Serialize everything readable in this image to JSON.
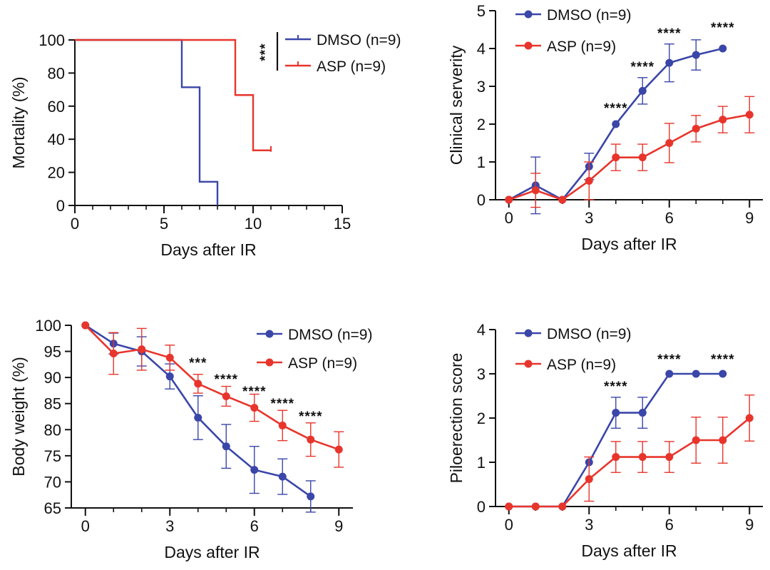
{
  "colors": {
    "dmso": "#3a46a8",
    "asp": "#e8352c"
  },
  "chart_data": [
    {
      "id": "mortality",
      "type": "line",
      "step": true,
      "xlabel": "Days after IR",
      "ylabel": "Mortality  (%)",
      "xlim": [
        0,
        15
      ],
      "ylim": [
        0,
        100
      ],
      "xticks": [
        0,
        5,
        10,
        15
      ],
      "xtick_labels": [
        "0",
        "5",
        "10",
        "15"
      ],
      "yticks": [
        0,
        20,
        40,
        60,
        80,
        100
      ],
      "ytick_labels": [
        "0",
        "20",
        "40",
        "60",
        "80",
        "100"
      ],
      "legend": "top-right",
      "series": [
        {
          "name": "DMSO",
          "label": "DMSO (n=9)",
          "color": "#3a46a8",
          "x": [
            0,
            6,
            7,
            8
          ],
          "y": [
            100,
            71.4,
            14.3,
            0
          ]
        },
        {
          "name": "ASP",
          "label": "ASP (n=9)",
          "color": "#e8352c",
          "x": [
            0,
            9,
            10,
            11
          ],
          "y": [
            100,
            66.7,
            33.3,
            33.3
          ]
        }
      ],
      "annotations": [
        {
          "text": "***"
        }
      ]
    },
    {
      "id": "clinical",
      "type": "line",
      "xlabel": "Days after IR",
      "ylabel": "Clinical serverity",
      "xlim": [
        -0.5,
        9.5
      ],
      "ylim": [
        0,
        5
      ],
      "xticks": [
        0,
        3,
        6,
        9
      ],
      "xtick_labels": [
        "0",
        "3",
        "6",
        "9"
      ],
      "yticks": [
        0,
        1,
        2,
        3,
        4,
        5
      ],
      "ytick_labels": [
        "0",
        "1",
        "2",
        "3",
        "4",
        "5"
      ],
      "legend": "top-left",
      "series": [
        {
          "name": "DMSO",
          "label": "DMSO (n=9)",
          "color": "#3a46a8",
          "x": [
            0,
            1,
            2,
            3,
            4,
            5,
            6,
            7,
            8
          ],
          "y": [
            0,
            0.38,
            0,
            0.88,
            2.0,
            2.88,
            3.62,
            3.83,
            4.0
          ],
          "err": [
            0,
            0.75,
            0,
            0.35,
            0,
            0.35,
            0.5,
            0.4,
            0
          ]
        },
        {
          "name": "ASP",
          "label": "ASP (n=9)",
          "color": "#e8352c",
          "x": [
            0,
            1,
            2,
            3,
            4,
            5,
            6,
            7,
            8,
            9
          ],
          "y": [
            0,
            0.25,
            0,
            0.5,
            1.12,
            1.12,
            1.5,
            1.88,
            2.12,
            2.25
          ],
          "err": [
            0,
            0.45,
            0,
            0.5,
            0.35,
            0.35,
            0.52,
            0.35,
            0.35,
            0.48
          ]
        }
      ],
      "annotations": [
        {
          "text": "****",
          "x": 4
        },
        {
          "text": "****",
          "x": 5
        },
        {
          "text": "****",
          "x": 6
        },
        {
          "text": "****",
          "x": 8
        }
      ]
    },
    {
      "id": "body_weight",
      "type": "line",
      "xlabel": "Days after IR",
      "ylabel": "Body weight (%)",
      "xlim": [
        -0.5,
        9.5
      ],
      "ylim": [
        65,
        100
      ],
      "xticks": [
        0,
        3,
        6,
        9
      ],
      "xtick_labels": [
        "0",
        "3",
        "6",
        "9"
      ],
      "yticks": [
        65,
        70,
        75,
        80,
        85,
        90,
        95,
        100
      ],
      "ytick_labels": [
        "65",
        "70",
        "75",
        "80",
        "85",
        "90",
        "95",
        "100"
      ],
      "legend": "top-right",
      "series": [
        {
          "name": "DMSO",
          "label": "DMSO (n=9)",
          "color": "#3a46a8",
          "x": [
            0,
            1,
            2,
            3,
            4,
            5,
            6,
            7,
            8
          ],
          "y": [
            100,
            96.5,
            95.0,
            90.2,
            82.3,
            76.8,
            72.3,
            71.0,
            67.2
          ],
          "err": [
            0,
            2.0,
            2.8,
            2.4,
            4.2,
            4.2,
            4.5,
            3.4,
            3.0
          ]
        },
        {
          "name": "ASP",
          "label": "ASP (n=9)",
          "color": "#e8352c",
          "x": [
            0,
            1,
            2,
            3,
            4,
            5,
            6,
            7,
            8,
            9
          ],
          "y": [
            100,
            94.6,
            95.4,
            93.8,
            88.8,
            86.4,
            84.2,
            80.8,
            78.1,
            76.2
          ],
          "err": [
            0,
            4.0,
            4.0,
            2.4,
            1.8,
            1.9,
            2.6,
            2.9,
            3.2,
            3.4
          ]
        }
      ],
      "annotations": [
        {
          "text": "***",
          "x": 4
        },
        {
          "text": "****",
          "x": 5
        },
        {
          "text": "****",
          "x": 6
        },
        {
          "text": "****",
          "x": 7
        },
        {
          "text": "****",
          "x": 8
        }
      ]
    },
    {
      "id": "piloerection",
      "type": "line",
      "xlabel": "Days after IR",
      "ylabel": "Piloerection score",
      "xlim": [
        -0.5,
        9.5
      ],
      "ylim": [
        0,
        4
      ],
      "xticks": [
        0,
        3,
        6,
        9
      ],
      "xtick_labels": [
        "0",
        "3",
        "6",
        "9"
      ],
      "yticks": [
        0,
        1,
        2,
        3,
        4
      ],
      "ytick_labels": [
        "0",
        "1",
        "2",
        "3",
        "4"
      ],
      "legend": "top-left",
      "series": [
        {
          "name": "DMSO",
          "label": "DMSO (n=9)",
          "color": "#3a46a8",
          "x": [
            0,
            1,
            2,
            3,
            4,
            5,
            6,
            7,
            8
          ],
          "y": [
            0,
            0,
            0,
            1.0,
            2.12,
            2.12,
            3.0,
            3.0,
            3.0
          ],
          "err": [
            0,
            0,
            0,
            0,
            0.35,
            0.35,
            0,
            0,
            0
          ]
        },
        {
          "name": "ASP",
          "label": "ASP (n=9)",
          "color": "#e8352c",
          "x": [
            0,
            1,
            2,
            3,
            4,
            5,
            6,
            7,
            8,
            9
          ],
          "y": [
            0,
            0,
            0,
            0.62,
            1.12,
            1.12,
            1.12,
            1.5,
            1.5,
            2.0
          ],
          "err": [
            0,
            0,
            0,
            0.5,
            0.35,
            0.35,
            0.35,
            0.52,
            0.52,
            0.52
          ]
        }
      ],
      "annotations": [
        {
          "text": "****",
          "x": 4
        },
        {
          "text": "****",
          "x": 6
        },
        {
          "text": "****",
          "x": 8
        }
      ]
    }
  ]
}
